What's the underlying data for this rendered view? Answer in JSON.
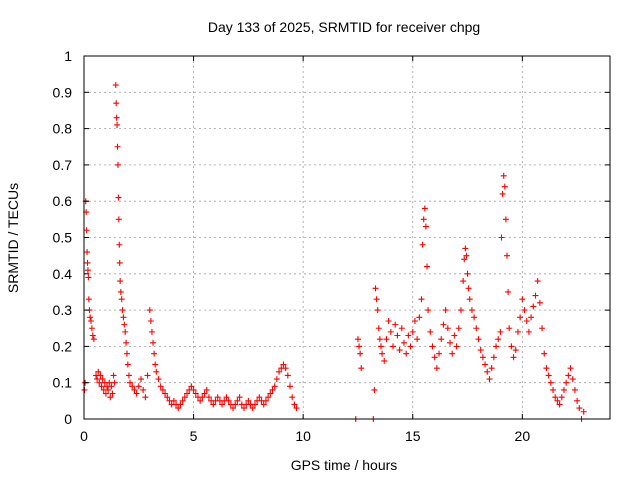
{
  "chart_data": {
    "type": "scatter",
    "title": "Day 133 of 2025, SRMTID for receiver chpg",
    "xlabel": "GPS time / hours",
    "ylabel": "SRMTID / TECUs",
    "xlim": [
      0,
      24
    ],
    "ylim": [
      0,
      1
    ],
    "xticks": [
      0,
      5,
      10,
      15,
      20
    ],
    "xtick_labels": [
      "0",
      "5",
      "10",
      "15",
      "20"
    ],
    "yticks": [
      0,
      0.1,
      0.2,
      0.3,
      0.4,
      0.5,
      0.6,
      0.7,
      0.8,
      0.9,
      1
    ],
    "ytick_labels": [
      "0",
      "0.1",
      "0.2",
      "0.3",
      "0.4",
      "0.5",
      "0.6",
      "0.7",
      "0.8",
      "0.9",
      "1"
    ],
    "grid": true,
    "marker": "+",
    "color": "#ff0000",
    "series": [
      {
        "name": "SRMTID",
        "points": [
          [
            0.02,
            0.08
          ],
          [
            0.05,
            0.1
          ],
          [
            0.08,
            0.6
          ],
          [
            0.1,
            0.57
          ],
          [
            0.12,
            0.52
          ],
          [
            0.14,
            0.46
          ],
          [
            0.16,
            0.43
          ],
          [
            0.18,
            0.41
          ],
          [
            0.2,
            0.39
          ],
          [
            0.22,
            0.33
          ],
          [
            0.25,
            0.3
          ],
          [
            0.28,
            0.28
          ],
          [
            0.32,
            0.27
          ],
          [
            0.36,
            0.25
          ],
          [
            0.4,
            0.23
          ],
          [
            0.45,
            0.22
          ],
          [
            0.55,
            0.12
          ],
          [
            0.6,
            0.11
          ],
          [
            0.65,
            0.13
          ],
          [
            0.7,
            0.1
          ],
          [
            0.75,
            0.12
          ],
          [
            0.8,
            0.09
          ],
          [
            0.85,
            0.11
          ],
          [
            0.9,
            0.08
          ],
          [
            0.95,
            0.1
          ],
          [
            1.0,
            0.07
          ],
          [
            1.05,
            0.09
          ],
          [
            1.1,
            0.08
          ],
          [
            1.15,
            0.1
          ],
          [
            1.2,
            0.06
          ],
          [
            1.25,
            0.09
          ],
          [
            1.3,
            0.07
          ],
          [
            1.35,
            0.12
          ],
          [
            1.4,
            0.1
          ],
          [
            1.45,
            0.92
          ],
          [
            1.47,
            0.87
          ],
          [
            1.49,
            0.83
          ],
          [
            1.51,
            0.81
          ],
          [
            1.53,
            0.75
          ],
          [
            1.55,
            0.7
          ],
          [
            1.57,
            0.61
          ],
          [
            1.59,
            0.55
          ],
          [
            1.61,
            0.48
          ],
          [
            1.63,
            0.43
          ],
          [
            1.65,
            0.38
          ],
          [
            1.68,
            0.35
          ],
          [
            1.72,
            0.33
          ],
          [
            1.76,
            0.3
          ],
          [
            1.8,
            0.28
          ],
          [
            1.84,
            0.26
          ],
          [
            1.88,
            0.24
          ],
          [
            1.92,
            0.21
          ],
          [
            1.96,
            0.18
          ],
          [
            2.0,
            0.15
          ],
          [
            2.05,
            0.12
          ],
          [
            2.1,
            0.1
          ],
          [
            2.2,
            0.09
          ],
          [
            2.3,
            0.08
          ],
          [
            2.4,
            0.07
          ],
          [
            2.5,
            0.09
          ],
          [
            2.6,
            0.11
          ],
          [
            2.7,
            0.08
          ],
          [
            2.8,
            0.06
          ],
          [
            2.9,
            0.12
          ],
          [
            3.0,
            0.3
          ],
          [
            3.05,
            0.27
          ],
          [
            3.1,
            0.24
          ],
          [
            3.15,
            0.21
          ],
          [
            3.2,
            0.18
          ],
          [
            3.25,
            0.15
          ],
          [
            3.3,
            0.13
          ],
          [
            3.4,
            0.11
          ],
          [
            3.5,
            0.09
          ],
          [
            3.6,
            0.08
          ],
          [
            3.7,
            0.07
          ],
          [
            3.8,
            0.06
          ],
          [
            3.9,
            0.05
          ],
          [
            4.0,
            0.04
          ],
          [
            4.1,
            0.05
          ],
          [
            4.2,
            0.04
          ],
          [
            4.3,
            0.03
          ],
          [
            4.4,
            0.04
          ],
          [
            4.5,
            0.05
          ],
          [
            4.6,
            0.06
          ],
          [
            4.7,
            0.07
          ],
          [
            4.8,
            0.08
          ],
          [
            4.9,
            0.09
          ],
          [
            5.0,
            0.08
          ],
          [
            5.1,
            0.07
          ],
          [
            5.2,
            0.06
          ],
          [
            5.3,
            0.05
          ],
          [
            5.4,
            0.06
          ],
          [
            5.5,
            0.07
          ],
          [
            5.6,
            0.08
          ],
          [
            5.7,
            0.06
          ],
          [
            5.8,
            0.05
          ],
          [
            5.9,
            0.04
          ],
          [
            6.0,
            0.05
          ],
          [
            6.1,
            0.06
          ],
          [
            6.2,
            0.05
          ],
          [
            6.3,
            0.04
          ],
          [
            6.4,
            0.05
          ],
          [
            6.5,
            0.06
          ],
          [
            6.6,
            0.05
          ],
          [
            6.7,
            0.04
          ],
          [
            6.8,
            0.03
          ],
          [
            6.9,
            0.04
          ],
          [
            7.0,
            0.05
          ],
          [
            7.1,
            0.06
          ],
          [
            7.2,
            0.04
          ],
          [
            7.3,
            0.03
          ],
          [
            7.4,
            0.04
          ],
          [
            7.5,
            0.05
          ],
          [
            7.6,
            0.04
          ],
          [
            7.7,
            0.03
          ],
          [
            7.8,
            0.04
          ],
          [
            7.9,
            0.05
          ],
          [
            8.0,
            0.06
          ],
          [
            8.1,
            0.05
          ],
          [
            8.2,
            0.04
          ],
          [
            8.3,
            0.05
          ],
          [
            8.4,
            0.06
          ],
          [
            8.5,
            0.07
          ],
          [
            8.6,
            0.08
          ],
          [
            8.7,
            0.09
          ],
          [
            8.8,
            0.11
          ],
          [
            8.9,
            0.13
          ],
          [
            9.0,
            0.14
          ],
          [
            9.1,
            0.15
          ],
          [
            9.2,
            0.14
          ],
          [
            9.3,
            0.12
          ],
          [
            9.4,
            0.09
          ],
          [
            9.5,
            0.06
          ],
          [
            9.6,
            0.04
          ],
          [
            9.7,
            0.03
          ],
          [
            12.4,
            0.0
          ],
          [
            12.5,
            0.22
          ],
          [
            12.55,
            0.2
          ],
          [
            12.6,
            0.18
          ],
          [
            12.65,
            0.14
          ],
          [
            13.2,
            0.0
          ],
          [
            13.25,
            0.08
          ],
          [
            13.3,
            0.36
          ],
          [
            13.35,
            0.33
          ],
          [
            13.4,
            0.3
          ],
          [
            13.45,
            0.25
          ],
          [
            13.5,
            0.22
          ],
          [
            13.55,
            0.2
          ],
          [
            13.6,
            0.18
          ],
          [
            13.7,
            0.16
          ],
          [
            13.8,
            0.22
          ],
          [
            13.9,
            0.27
          ],
          [
            14.0,
            0.24
          ],
          [
            14.1,
            0.2
          ],
          [
            14.2,
            0.26
          ],
          [
            14.3,
            0.23
          ],
          [
            14.4,
            0.19
          ],
          [
            14.5,
            0.25
          ],
          [
            14.6,
            0.21
          ],
          [
            14.7,
            0.18
          ],
          [
            14.8,
            0.23
          ],
          [
            14.9,
            0.2
          ],
          [
            15.0,
            0.24
          ],
          [
            15.1,
            0.27
          ],
          [
            15.2,
            0.22
          ],
          [
            15.3,
            0.28
          ],
          [
            15.4,
            0.33
          ],
          [
            15.45,
            0.48
          ],
          [
            15.5,
            0.55
          ],
          [
            15.55,
            0.58
          ],
          [
            15.6,
            0.53
          ],
          [
            15.65,
            0.42
          ],
          [
            15.7,
            0.3
          ],
          [
            15.8,
            0.24
          ],
          [
            15.9,
            0.2
          ],
          [
            16.0,
            0.17
          ],
          [
            16.1,
            0.14
          ],
          [
            16.2,
            0.18
          ],
          [
            16.3,
            0.22
          ],
          [
            16.4,
            0.26
          ],
          [
            16.5,
            0.3
          ],
          [
            16.6,
            0.25
          ],
          [
            16.7,
            0.21
          ],
          [
            16.8,
            0.18
          ],
          [
            16.9,
            0.23
          ],
          [
            17.0,
            0.2
          ],
          [
            17.1,
            0.25
          ],
          [
            17.2,
            0.3
          ],
          [
            17.3,
            0.38
          ],
          [
            17.35,
            0.44
          ],
          [
            17.4,
            0.47
          ],
          [
            17.45,
            0.45
          ],
          [
            17.5,
            0.4
          ],
          [
            17.55,
            0.36
          ],
          [
            17.6,
            0.33
          ],
          [
            17.7,
            0.3
          ],
          [
            17.8,
            0.28
          ],
          [
            17.9,
            0.25
          ],
          [
            18.0,
            0.22
          ],
          [
            18.1,
            0.19
          ],
          [
            18.2,
            0.17
          ],
          [
            18.3,
            0.15
          ],
          [
            18.4,
            0.13
          ],
          [
            18.5,
            0.11
          ],
          [
            18.6,
            0.14
          ],
          [
            18.7,
            0.17
          ],
          [
            18.8,
            0.2
          ],
          [
            18.9,
            0.22
          ],
          [
            19.0,
            0.24
          ],
          [
            19.05,
            0.5
          ],
          [
            19.1,
            0.62
          ],
          [
            19.15,
            0.67
          ],
          [
            19.2,
            0.64
          ],
          [
            19.25,
            0.55
          ],
          [
            19.3,
            0.45
          ],
          [
            19.35,
            0.35
          ],
          [
            19.4,
            0.25
          ],
          [
            19.5,
            0.2
          ],
          [
            19.6,
            0.17
          ],
          [
            19.7,
            0.19
          ],
          [
            19.8,
            0.24
          ],
          [
            19.9,
            0.28
          ],
          [
            20.0,
            0.33
          ],
          [
            20.1,
            0.3
          ],
          [
            20.2,
            0.27
          ],
          [
            20.3,
            0.24
          ],
          [
            20.4,
            0.28
          ],
          [
            20.5,
            0.31
          ],
          [
            20.6,
            0.34
          ],
          [
            20.7,
            0.38
          ],
          [
            20.8,
            0.32
          ],
          [
            20.9,
            0.25
          ],
          [
            21.0,
            0.18
          ],
          [
            21.1,
            0.14
          ],
          [
            21.2,
            0.12
          ],
          [
            21.3,
            0.1
          ],
          [
            21.4,
            0.08
          ],
          [
            21.5,
            0.06
          ],
          [
            21.6,
            0.05
          ],
          [
            21.7,
            0.04
          ],
          [
            21.8,
            0.06
          ],
          [
            21.9,
            0.08
          ],
          [
            22.0,
            0.1
          ],
          [
            22.1,
            0.12
          ],
          [
            22.2,
            0.14
          ],
          [
            22.3,
            0.11
          ],
          [
            22.4,
            0.08
          ],
          [
            22.5,
            0.05
          ],
          [
            22.6,
            0.03
          ],
          [
            22.7,
            0.0
          ],
          [
            22.8,
            0.02
          ]
        ]
      }
    ]
  }
}
